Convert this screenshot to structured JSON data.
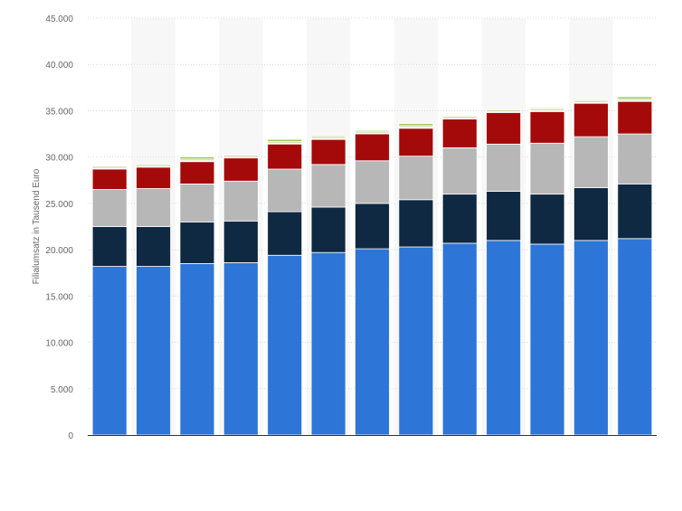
{
  "chart_data": {
    "type": "bar",
    "stacked": true,
    "title": "",
    "xlabel": "",
    "ylabel": "Filialumsatz in Tausend Euro",
    "ylim": [
      0,
      45000
    ],
    "yticks": [
      0,
      5000,
      10000,
      15000,
      20000,
      25000,
      30000,
      35000,
      40000,
      45000
    ],
    "ytick_labels": [
      "0",
      "5.000",
      "10.000",
      "15.000",
      "20.000",
      "25.000",
      "30.000",
      "35.000",
      "40.000",
      "45.000"
    ],
    "grid": true,
    "legend": "none",
    "categories": [
      "",
      "",
      "",
      "",
      "",
      "",
      "",
      "",
      "",
      "",
      "",
      "",
      ""
    ],
    "series": [
      {
        "color": "#2e75d8",
        "values": [
          18200,
          18200,
          18500,
          18600,
          19400,
          19700,
          20100,
          20300,
          20700,
          21000,
          20600,
          21000,
          21200
        ]
      },
      {
        "color": "#0f2942",
        "values": [
          4300,
          4300,
          4500,
          4500,
          4700,
          4900,
          4900,
          5100,
          5300,
          5300,
          5400,
          5700,
          5900
        ]
      },
      {
        "color": "#b7b7b7",
        "values": [
          4000,
          4100,
          4100,
          4300,
          4600,
          4600,
          4600,
          4700,
          5000,
          5100,
          5500,
          5500,
          5400
        ]
      },
      {
        "color": "#a50a0a",
        "values": [
          2200,
          2300,
          2400,
          2500,
          2700,
          2700,
          2900,
          3000,
          3100,
          3400,
          3400,
          3600,
          3500
        ]
      },
      {
        "color": "#ffffff",
        "values": [
          100,
          100,
          100,
          100,
          100,
          100,
          100,
          100,
          100,
          100,
          100,
          100,
          100
        ]
      },
      {
        "color": "#cfd9a8",
        "values": [
          200,
          200,
          200,
          200,
          200,
          200,
          200,
          200,
          200,
          200,
          200,
          200,
          200
        ]
      },
      {
        "color": "#8bbf3f",
        "values": [
          0,
          0,
          200,
          0,
          200,
          100,
          100,
          200,
          0,
          0,
          100,
          0,
          200
        ]
      }
    ]
  }
}
